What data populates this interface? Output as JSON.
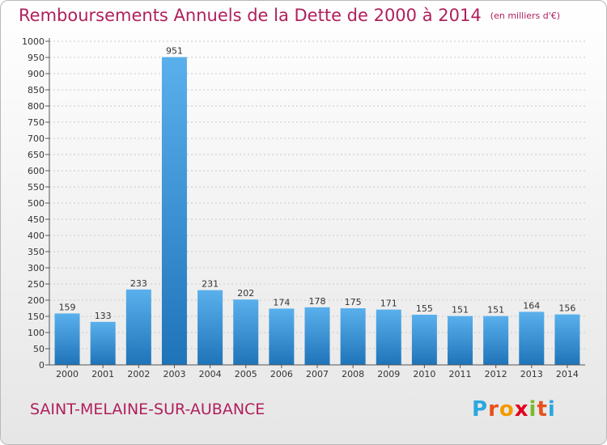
{
  "title": "Remboursements Annuels de la Dette de 2000 à 2014",
  "subtitle": "(en milliers d'€)",
  "commune": "SAINT-MELAINE-SUR-AUBANCE",
  "logo": {
    "text": "Proxiti",
    "letters": [
      "P",
      "r",
      "o",
      "x",
      "i",
      "t",
      "i"
    ],
    "colors": [
      "#2aa7df",
      "#e8501c",
      "#f29b00",
      "#e2001a",
      "#7ab929",
      "#e8501c",
      "#2aa7df"
    ]
  },
  "colors": {
    "title": "#b0205c",
    "bar_light": "#5ab0ec",
    "bar_dark": "#1f74b9",
    "grid": "#c8c8c8"
  },
  "chart_data": {
    "type": "bar",
    "title": "Remboursements Annuels de la Dette de 2000 à 2014",
    "subtitle": "(en milliers d'€)",
    "xlabel": "",
    "ylabel": "",
    "categories": [
      "2000",
      "2001",
      "2002",
      "2003",
      "2004",
      "2005",
      "2006",
      "2007",
      "2008",
      "2009",
      "2010",
      "2011",
      "2012",
      "2013",
      "2014"
    ],
    "values": [
      159,
      133,
      233,
      951,
      231,
      202,
      174,
      178,
      175,
      171,
      155,
      151,
      151,
      164,
      156
    ],
    "ylim": [
      0,
      1000
    ],
    "yticks": [
      0,
      50,
      100,
      150,
      200,
      250,
      300,
      350,
      400,
      450,
      500,
      550,
      600,
      650,
      700,
      750,
      800,
      850,
      900,
      950,
      1000
    ],
    "grid": true,
    "legend": "none",
    "data_labels": true
  }
}
